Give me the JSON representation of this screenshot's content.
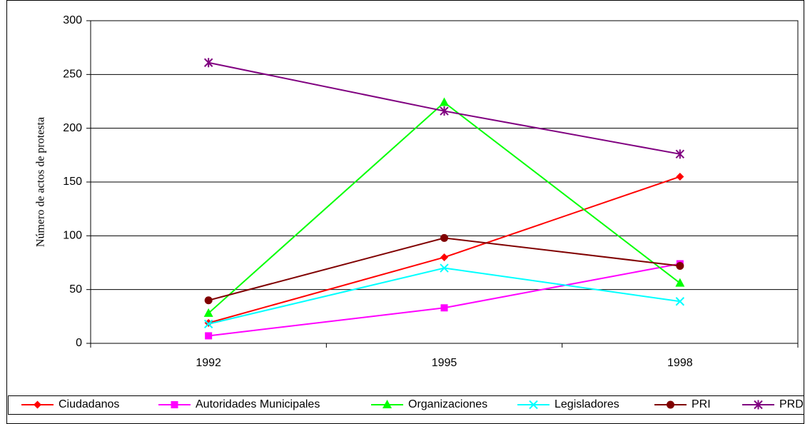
{
  "chart_data": {
    "type": "line",
    "ylabel": "Número de actos de protesta",
    "categories": [
      "1992",
      "1995",
      "1998"
    ],
    "series": [
      {
        "name": "Ciudadanos",
        "color": "#ff0000",
        "marker": "diamond",
        "values": [
          19,
          80,
          155
        ]
      },
      {
        "name": "Autoridades Municipales",
        "color": "#ff00ff",
        "marker": "square",
        "values": [
          7,
          33,
          74
        ]
      },
      {
        "name": "Organizaciones",
        "color": "#00ff00",
        "marker": "triangle",
        "values": [
          28,
          224,
          56
        ]
      },
      {
        "name": "Legisladores",
        "color": "#00ffff",
        "marker": "x",
        "values": [
          18,
          70,
          39
        ]
      },
      {
        "name": "PRI",
        "color": "#800000",
        "marker": "circle",
        "values": [
          40,
          98,
          72
        ]
      },
      {
        "name": "PRD",
        "color": "#800080",
        "marker": "asterisk",
        "values": [
          261,
          216,
          176
        ]
      }
    ],
    "ylim": [
      0,
      300
    ],
    "yticks": [
      0,
      50,
      100,
      150,
      200,
      250,
      300
    ],
    "grid": true,
    "legend": "bottom"
  }
}
